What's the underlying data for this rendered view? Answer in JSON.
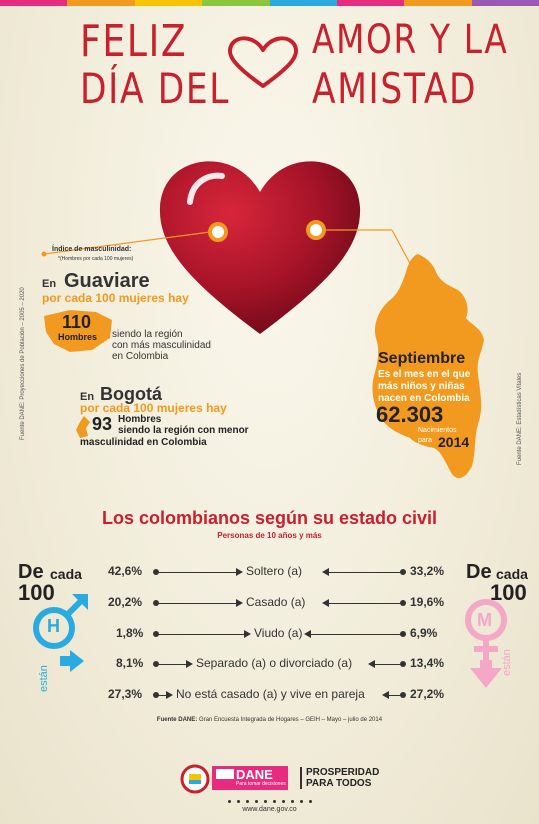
{
  "colors": {
    "topbar": [
      "#e72b7f",
      "#f29a1f",
      "#f6c400",
      "#8cc63f",
      "#29abe2",
      "#e72b7f",
      "#f29a1f",
      "#9b59b6"
    ],
    "red": "#c8202c",
    "orange": "#f29a1f",
    "blue": "#29abe2",
    "pink": "#f4a7c6"
  },
  "header": {
    "line1a": "FELIZ",
    "line1b": "AMOR Y LA",
    "line2a": "DÍA DEL",
    "line2b": "AMISTAD"
  },
  "source_left": "Fuente DANE: Proyecciones de Población – 2005 – 2020",
  "source_right": "Fuente DANE: Estadísticas Vitales",
  "index": {
    "title": "Índice de masculinidad:",
    "subtitle": "*(Hombres por cada 100 mujeres)"
  },
  "guaviare": {
    "prefix": "En",
    "name": "Guaviare",
    "per": "por cada 100 mujeres hay",
    "value": "110",
    "unit": "Hombres",
    "desc1": "siendo la región",
    "desc2": "con más masculinidad",
    "desc3": "en Colombia"
  },
  "bogota": {
    "prefix": "En",
    "name": "Bogotá",
    "per": "por cada 100 mujeres hay",
    "value": "93",
    "unit": "Hombres",
    "desc1": "siendo la región con menor",
    "desc2": "masculinidad en Colombia"
  },
  "september": {
    "title": "Septiembre",
    "desc1": "Es el mes en el que",
    "desc2": "más niños y niñas",
    "desc3": "nacen en Colombia",
    "value": "62.303",
    "unit": "Nacimientos",
    "para": "para",
    "year": "2014"
  },
  "civil": {
    "title": "Los colombianos según su estado civil",
    "subtitle": "Personas de 10 años y más",
    "left": {
      "de": "De",
      "cada": "cada",
      "num": "100",
      "letter": "H",
      "estan": "están"
    },
    "right": {
      "de": "De",
      "cada": "cada",
      "num": "100",
      "letter": "M",
      "estan": "están"
    },
    "rows": [
      {
        "men": "42,6%",
        "label": "Soltero (a)",
        "women": "33,2%"
      },
      {
        "men": "20,2%",
        "label": "Casado (a)",
        "women": "19,6%"
      },
      {
        "men": "1,8%",
        "label": "Viudo (a)",
        "women": "6,9%"
      },
      {
        "men": "8,1%",
        "label": "Separado (a) o divorciado (a)",
        "women": "13,4%"
      },
      {
        "men": "27,3%",
        "label": "No está casado (a) y vive en pareja",
        "women": "27,2%"
      }
    ],
    "source_bold": "Fuente DANE:",
    "source": "Gran Encuesta Integrada de Hogares – GEIH – Mayo – julio de 2014"
  },
  "footer": {
    "dane": "DANE",
    "dane_tag": "Para tomar decisiones",
    "prosperidad1": "PROSPERIDAD",
    "prosperidad2": "PARA TODOS",
    "url": "www.dane.gov.co"
  }
}
